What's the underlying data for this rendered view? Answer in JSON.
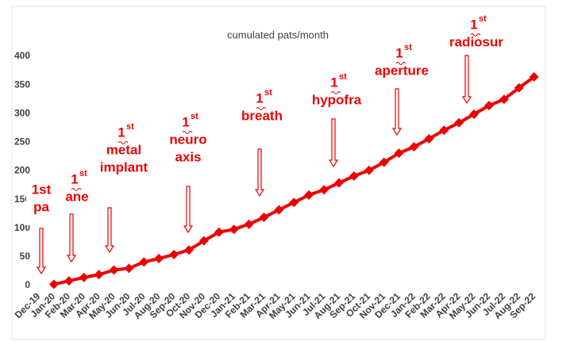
{
  "chart_data": {
    "type": "line",
    "title": "cumulated pats/month",
    "categories": [
      "Dec-19",
      "Jan-20",
      "Feb-20",
      "Mar-20",
      "Apr-20",
      "May-20",
      "Jun-20",
      "Jul-20",
      "Aug-20",
      "Sep-20",
      "Oct-20",
      "Nov-20",
      "Dec-20",
      "Jan-21",
      "Feb-21",
      "Mar-21",
      "Apr-21",
      "May-21",
      "Jun-21",
      "Jul-21",
      "Aug-21",
      "Sep-21",
      "Oct-21",
      "Nov-21",
      "Dec-21",
      "Jan-22",
      "Feb-22",
      "Mar-22",
      "Apr-22",
      "May-22",
      "Jun-22",
      "Jul-22",
      "Aug-22",
      "Sep-22"
    ],
    "series": [
      {
        "name": "cumulated pats",
        "color": "#ee0000",
        "values": [
          null,
          2,
          8,
          14,
          19,
          27,
          30,
          41,
          47,
          54,
          62,
          78,
          93,
          98,
          107,
          119,
          132,
          145,
          158,
          167,
          179,
          191,
          201,
          215,
          231,
          242,
          256,
          271,
          284,
          299,
          314,
          325,
          345,
          364
        ]
      }
    ],
    "ylim": [
      0,
      400
    ],
    "yticks": [
      0,
      50,
      100,
      150,
      200,
      250,
      300,
      350,
      400
    ],
    "grid": false,
    "annotations": [
      {
        "number": "1st",
        "lines": [
          "pa"
        ]
      },
      {
        "number": "1",
        "suffix": "st",
        "lines": [
          "ane"
        ]
      },
      {
        "number": "1",
        "suffix": "st",
        "lines": [
          "metal",
          "implant"
        ]
      },
      {
        "number": "1",
        "suffix": "st",
        "lines": [
          "neuro",
          "axis"
        ]
      },
      {
        "number": "1",
        "suffix": "st",
        "lines": [
          "breath"
        ]
      },
      {
        "number": "1",
        "suffix": "st",
        "lines": [
          "hypofra"
        ]
      },
      {
        "number": "1",
        "suffix": "st",
        "lines": [
          "aperture"
        ]
      },
      {
        "number": "1",
        "suffix": "st",
        "lines": [
          "radiosur"
        ]
      }
    ]
  }
}
